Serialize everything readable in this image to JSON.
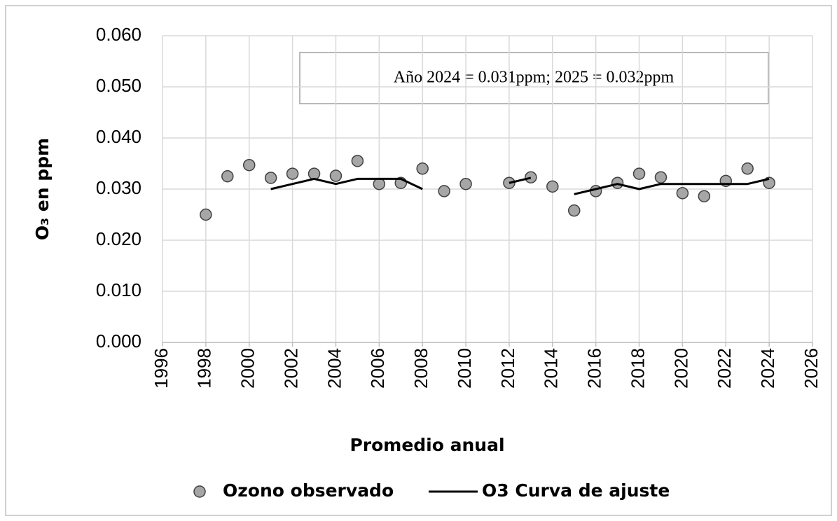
{
  "chart_data": {
    "type": "scatter",
    "xlabel": "Promedio anual",
    "ylabel": "O₃ en ppm",
    "annotation": "Año 2024 = 0.031ppm;  2025 = 0.032ppm",
    "x": [
      1998,
      1999,
      2000,
      2001,
      2002,
      2003,
      2004,
      2005,
      2006,
      2007,
      2008,
      2009,
      2010,
      2011,
      2012,
      2013,
      2014,
      2015,
      2016,
      2017,
      2018,
      2019,
      2020,
      2021,
      2022,
      2023,
      2024
    ],
    "series": [
      {
        "name": "Ozono observado",
        "type": "scatter",
        "color": "#a6a6a6",
        "values": [
          0.025,
          0.0325,
          0.0347,
          0.0322,
          0.033,
          0.033,
          0.0326,
          0.0355,
          0.031,
          0.0312,
          0.034,
          0.0296,
          0.031,
          null,
          0.0312,
          0.0323,
          0.0305,
          0.0258,
          0.0296,
          0.0312,
          0.033,
          0.0323,
          0.0292,
          0.0286,
          0.0316,
          0.034,
          0.0312
        ]
      },
      {
        "name": "O3 Curva de ajuste",
        "type": "line",
        "color": "#000000",
        "values": [
          null,
          null,
          null,
          0.03,
          0.031,
          0.032,
          0.031,
          0.032,
          0.032,
          0.032,
          0.03,
          null,
          null,
          null,
          0.0312,
          0.0322,
          null,
          0.029,
          0.03,
          0.031,
          0.03,
          0.031,
          0.031,
          0.031,
          0.031,
          0.031,
          0.032
        ]
      }
    ],
    "xlim": [
      1996,
      2026
    ],
    "xticks": [
      1996,
      1998,
      2000,
      2002,
      2004,
      2006,
      2008,
      2010,
      2012,
      2014,
      2016,
      2018,
      2020,
      2022,
      2024,
      2026
    ],
    "ylim": [
      0,
      0.06
    ],
    "yticks": [
      {
        "value": 0,
        "label": "0.000"
      },
      {
        "value": 0.01,
        "label": "0.010"
      },
      {
        "value": 0.02,
        "label": "0.020"
      },
      {
        "value": 0.03,
        "label": "0.030"
      },
      {
        "value": 0.04,
        "label": "0.040"
      },
      {
        "value": 0.05,
        "label": "0.050"
      },
      {
        "value": 0.06,
        "label": "0.060"
      }
    ],
    "grid": true
  }
}
